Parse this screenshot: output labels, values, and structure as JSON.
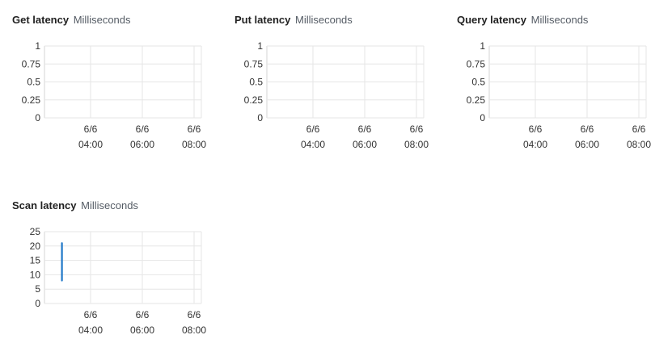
{
  "chart_data": [
    {
      "type": "line",
      "title": "Get latency",
      "unit": "Milliseconds",
      "y_ticks": [
        "1",
        "0.75",
        "0.5",
        "0.25",
        "0"
      ],
      "ylim": [
        0,
        1
      ],
      "x_ticks": [
        {
          "date": "6/6",
          "time": "04:00"
        },
        {
          "date": "6/6",
          "time": "06:00"
        },
        {
          "date": "6/6",
          "time": "08:00"
        }
      ],
      "grid": true,
      "series": []
    },
    {
      "type": "line",
      "title": "Put latency",
      "unit": "Milliseconds",
      "y_ticks": [
        "1",
        "0.75",
        "0.5",
        "0.25",
        "0"
      ],
      "ylim": [
        0,
        1
      ],
      "x_ticks": [
        {
          "date": "6/6",
          "time": "04:00"
        },
        {
          "date": "6/6",
          "time": "06:00"
        },
        {
          "date": "6/6",
          "time": "08:00"
        }
      ],
      "grid": true,
      "series": []
    },
    {
      "type": "line",
      "title": "Query latency",
      "unit": "Milliseconds",
      "y_ticks": [
        "1",
        "0.75",
        "0.5",
        "0.25",
        "0"
      ],
      "ylim": [
        0,
        1
      ],
      "x_ticks": [
        {
          "date": "6/6",
          "time": "04:00"
        },
        {
          "date": "6/6",
          "time": "06:00"
        },
        {
          "date": "6/6",
          "time": "08:00"
        }
      ],
      "grid": true,
      "series": []
    },
    {
      "type": "line",
      "title": "Scan latency",
      "unit": "Milliseconds",
      "y_ticks": [
        "25",
        "20",
        "15",
        "10",
        "5",
        "0"
      ],
      "ylim": [
        0,
        25
      ],
      "x_ticks": [
        {
          "date": "6/6",
          "time": "04:00"
        },
        {
          "date": "6/6",
          "time": "06:00"
        },
        {
          "date": "6/6",
          "time": "08:00"
        }
      ],
      "grid": true,
      "series": [
        {
          "color": "#1f78c8",
          "points": [
            {
              "x": "6/6 02:40",
              "y": 21
            },
            {
              "x": "6/6 02:40",
              "y": 8
            }
          ]
        }
      ]
    }
  ]
}
